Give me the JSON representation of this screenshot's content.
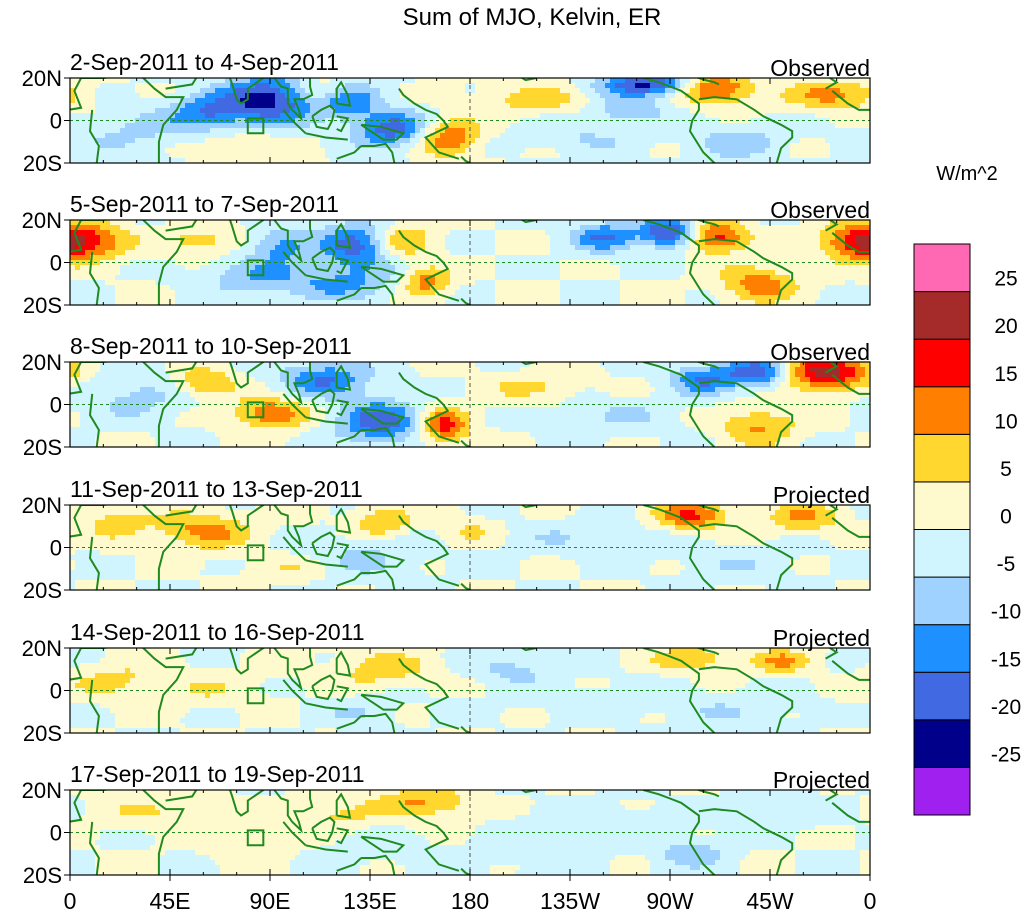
{
  "chart_data": {
    "type": "heatmap",
    "title": "Sum of MJO, Kelvin, ER",
    "colorbar": {
      "unit": "W/m^2",
      "colors": [
        "#a020f0",
        "#00008b",
        "#4169e1",
        "#1e90ff",
        "#a0d2ff",
        "#d0f5ff",
        "#fffacd",
        "#ffd72e",
        "#ff7f00",
        "#ff0000",
        "#a52a2a",
        "#ff69b4"
      ],
      "tick_labels": [
        "-25",
        "-20",
        "-15",
        "-10",
        "-5",
        "0",
        "5",
        "10",
        "15",
        "20",
        "25"
      ]
    },
    "x_ticks": [
      "0",
      "45E",
      "90E",
      "135E",
      "180",
      "135W",
      "90W",
      "45W",
      "0"
    ],
    "y_ticks": [
      "20N",
      "0",
      "20S"
    ],
    "xlim": [
      0,
      360
    ],
    "ylim": [
      -20,
      20
    ],
    "box_region": {
      "lon": [
        80,
        87
      ],
      "lat": [
        -6,
        1
      ]
    },
    "panels": [
      {
        "date_range": "2-Sep-2011 to 4-Sep-2011",
        "kind": "Observed",
        "blobs": [
          [
            90,
            10,
            15,
            8,
            -22
          ],
          [
            62,
            4,
            12,
            6,
            -13
          ],
          [
            145,
            -4,
            12,
            6,
            -18
          ],
          [
            170,
            -8,
            10,
            6,
            15
          ],
          [
            115,
            14,
            10,
            5,
            10
          ],
          [
            125,
            10,
            10,
            6,
            -15
          ],
          [
            210,
            10,
            20,
            5,
            7
          ],
          [
            260,
            17,
            15,
            4,
            -22
          ],
          [
            290,
            15,
            12,
            5,
            18
          ],
          [
            300,
            -10,
            15,
            6,
            -8
          ],
          [
            345,
            12,
            15,
            5,
            12
          ],
          [
            30,
            -5,
            20,
            8,
            -6
          ],
          [
            75,
            -12,
            15,
            5,
            6
          ],
          [
            230,
            -8,
            20,
            5,
            -5
          ],
          [
            250,
            5,
            12,
            4,
            -10
          ]
        ]
      },
      {
        "date_range": "5-Sep-2011 to 7-Sep-2011",
        "kind": "Observed",
        "blobs": [
          [
            130,
            8,
            12,
            8,
            -18
          ],
          [
            148,
            10,
            10,
            6,
            12
          ],
          [
            95,
            8,
            10,
            6,
            -12
          ],
          [
            160,
            -9,
            8,
            5,
            13
          ],
          [
            240,
            12,
            10,
            5,
            -15
          ],
          [
            270,
            14,
            10,
            5,
            -22
          ],
          [
            290,
            12,
            10,
            5,
            20
          ],
          [
            310,
            -10,
            12,
            6,
            13
          ],
          [
            355,
            10,
            12,
            6,
            18
          ],
          [
            10,
            10,
            12,
            6,
            12
          ],
          [
            60,
            10,
            12,
            5,
            8
          ],
          [
            80,
            -6,
            15,
            6,
            -8
          ],
          [
            120,
            -10,
            20,
            6,
            -10
          ]
        ]
      },
      {
        "date_range": "8-Sep-2011 to 10-Sep-2011",
        "kind": "Observed",
        "blobs": [
          [
            140,
            -8,
            14,
            7,
            -18
          ],
          [
            168,
            -10,
            8,
            6,
            18
          ],
          [
            90,
            -4,
            12,
            5,
            15
          ],
          [
            60,
            10,
            10,
            5,
            12
          ],
          [
            115,
            12,
            14,
            6,
            -15
          ],
          [
            285,
            12,
            10,
            5,
            -15
          ],
          [
            310,
            15,
            10,
            5,
            -20
          ],
          [
            340,
            15,
            15,
            6,
            22
          ],
          [
            310,
            -10,
            12,
            6,
            11
          ],
          [
            210,
            8,
            15,
            5,
            6
          ],
          [
            30,
            5,
            20,
            8,
            -7
          ],
          [
            245,
            -5,
            20,
            6,
            -5
          ]
        ]
      },
      {
        "date_range": "11-Sep-2011 to 13-Sep-2011",
        "kind": "Projected",
        "blobs": [
          [
            60,
            8,
            15,
            6,
            12
          ],
          [
            140,
            12,
            10,
            5,
            10
          ],
          [
            180,
            8,
            10,
            5,
            6
          ],
          [
            280,
            15,
            12,
            5,
            15
          ],
          [
            330,
            14,
            12,
            5,
            10
          ],
          [
            130,
            -5,
            20,
            8,
            -6
          ],
          [
            230,
            5,
            30,
            6,
            -4
          ],
          [
            20,
            12,
            10,
            5,
            8
          ],
          [
            100,
            -10,
            15,
            5,
            5
          ],
          [
            300,
            -8,
            20,
            6,
            -4
          ]
        ]
      },
      {
        "date_range": "14-Sep-2011 to 16-Sep-2011",
        "kind": "Projected",
        "blobs": [
          [
            140,
            10,
            15,
            6,
            8
          ],
          [
            200,
            10,
            12,
            5,
            -7
          ],
          [
            280,
            15,
            12,
            4,
            10
          ],
          [
            320,
            14,
            10,
            4,
            10
          ],
          [
            130,
            -10,
            12,
            5,
            -5
          ],
          [
            60,
            0,
            20,
            6,
            4
          ],
          [
            20,
            5,
            15,
            6,
            6
          ],
          [
            240,
            -5,
            30,
            6,
            -3
          ],
          [
            300,
            -10,
            20,
            6,
            -4
          ]
        ]
      },
      {
        "date_range": "17-Sep-2011 to 19-Sep-2011",
        "kind": "Projected",
        "blobs": [
          [
            160,
            14,
            15,
            5,
            11
          ],
          [
            120,
            8,
            12,
            5,
            6
          ],
          [
            40,
            10,
            20,
            6,
            5
          ],
          [
            80,
            -5,
            15,
            5,
            5
          ],
          [
            240,
            5,
            25,
            6,
            -4
          ],
          [
            280,
            -10,
            12,
            5,
            -8
          ],
          [
            210,
            -10,
            20,
            5,
            -4
          ],
          [
            320,
            10,
            20,
            6,
            -3
          ],
          [
            140,
            -8,
            15,
            5,
            -4
          ]
        ]
      }
    ],
    "coastlines": [
      [
        [
          5,
          20
        ],
        [
          15,
          20
        ],
        [
          30,
          22
        ],
        [
          33,
          20
        ],
        [
          38,
          15
        ],
        [
          43,
          11
        ],
        [
          51,
          11
        ],
        [
          48,
          5
        ],
        [
          42,
          -2
        ],
        [
          40,
          -10
        ],
        [
          40,
          -20
        ]
      ],
      [
        [
          5,
          20
        ],
        [
          2,
          14
        ],
        [
          5,
          6
        ],
        [
          -1,
          5
        ]
      ],
      [
        [
          10,
          5
        ],
        [
          9,
          -5
        ],
        [
          13,
          -12
        ],
        [
          12,
          -20
        ]
      ],
      [
        [
          43,
          15
        ],
        [
          55,
          17
        ],
        [
          58,
          22
        ]
      ],
      [
        [
          68,
          22
        ],
        [
          72,
          20
        ],
        [
          73,
          17
        ],
        [
          75,
          10
        ],
        [
          77,
          8
        ],
        [
          80,
          10
        ],
        [
          80,
          15
        ],
        [
          87,
          20
        ],
        [
          92,
          22
        ]
      ],
      [
        [
          92,
          20
        ],
        [
          95,
          16
        ],
        [
          98,
          15
        ],
        [
          98,
          8
        ],
        [
          100,
          5
        ],
        [
          104,
          1
        ],
        [
          103,
          5
        ],
        [
          101,
          10
        ],
        [
          105,
          10
        ],
        [
          109,
          12
        ],
        [
          108,
          16
        ],
        [
          108,
          22
        ]
      ],
      [
        [
          96,
          5
        ],
        [
          100,
          0
        ],
        [
          106,
          -6
        ]
      ],
      [
        [
          106,
          -6
        ],
        [
          115,
          -8
        ],
        [
          125,
          -9
        ]
      ],
      [
        [
          109,
          2
        ],
        [
          113,
          5
        ],
        [
          117,
          7
        ],
        [
          119,
          5
        ],
        [
          118,
          0
        ],
        [
          116,
          -4
        ],
        [
          111,
          -3
        ],
        [
          109,
          2
        ]
      ],
      [
        [
          120,
          2
        ],
        [
          125,
          1
        ],
        [
          122,
          -5
        ],
        [
          120,
          -4
        ]
      ],
      [
        [
          131,
          -2
        ],
        [
          140,
          -3
        ],
        [
          150,
          -6
        ],
        [
          147,
          -9
        ],
        [
          141,
          -9
        ],
        [
          131,
          -2
        ]
      ],
      [
        [
          120,
          8
        ],
        [
          126,
          7
        ],
        [
          125,
          12
        ],
        [
          122,
          18
        ],
        [
          120,
          15
        ],
        [
          120,
          8
        ]
      ],
      [
        [
          131,
          -12
        ],
        [
          137,
          -12
        ],
        [
          142,
          -11
        ],
        [
          145,
          -15
        ],
        [
          146,
          -20
        ]
      ],
      [
        [
          120,
          -18
        ],
        [
          128,
          -15
        ],
        [
          131,
          -12
        ]
      ],
      [
        [
          258,
          20
        ],
        [
          265,
          18
        ],
        [
          270,
          16
        ],
        [
          275,
          14
        ],
        [
          283,
          8
        ],
        [
          283,
          5
        ],
        [
          280,
          0
        ],
        [
          279,
          -5
        ],
        [
          285,
          -15
        ],
        [
          290,
          -20
        ]
      ],
      [
        [
          283,
          10
        ],
        [
          290,
          11
        ],
        [
          300,
          10
        ],
        [
          308,
          5
        ],
        [
          312,
          2
        ],
        [
          320,
          -2
        ],
        [
          325,
          -5
        ],
        [
          325,
          -8
        ],
        [
          320,
          -13
        ],
        [
          318,
          -20
        ]
      ],
      [
        [
          280,
          21
        ],
        [
          283,
          20
        ],
        [
          286,
          19
        ],
        [
          290,
          18
        ],
        [
          292,
          17
        ]
      ],
      [
        [
          340,
          15
        ],
        [
          345,
          18
        ],
        [
          342,
          20
        ]
      ],
      [
        [
          343,
          14
        ],
        [
          350,
          8
        ],
        [
          355,
          5
        ],
        [
          360,
          5
        ]
      ],
      [
        [
          148,
          15
        ],
        [
          150,
          12
        ],
        [
          155,
          8
        ],
        [
          160,
          5
        ],
        [
          165,
          3
        ],
        [
          168,
          0
        ],
        [
          170,
          -3
        ],
        [
          160,
          -8
        ],
        [
          166,
          -15
        ],
        [
          175,
          -18
        ]
      ],
      [
        [
          176,
          -17
        ],
        [
          178,
          -19
        ],
        [
          182,
          -21
        ]
      ],
      [
        [
          210,
          20
        ],
        [
          205,
          19
        ],
        [
          202,
          21
        ]
      ]
    ]
  }
}
